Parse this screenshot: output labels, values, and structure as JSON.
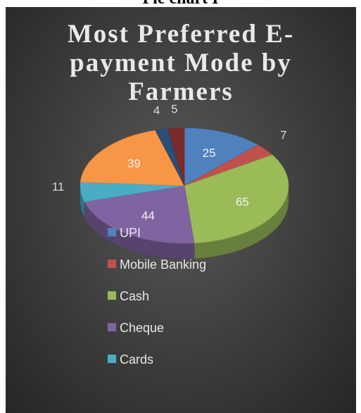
{
  "caption": "Pie chart I",
  "chart_data": {
    "type": "pie",
    "title": "Most Preferred E-payment Mode by Farmers",
    "title_lines": [
      "Most Preferred E-",
      "payment Mode by",
      "Farmers"
    ],
    "three_d": true,
    "legend_position": "bottom-center",
    "slices": [
      {
        "label": "UPI",
        "value": 25,
        "color": "#4f81bd"
      },
      {
        "label": "Mobile Banking",
        "value": 7,
        "color": "#c0504d"
      },
      {
        "label": "Cash",
        "value": 65,
        "color": "#9bbb59"
      },
      {
        "label": "Cheque",
        "value": 44,
        "color": "#8064a2"
      },
      {
        "label": "Cards",
        "value": 11,
        "color": "#4bacc6"
      },
      {
        "label": "",
        "value": 39,
        "color": "#f79646"
      },
      {
        "label": "",
        "value": 4,
        "color": "#2c4d75"
      },
      {
        "label": "",
        "value": 5,
        "color": "#772c2a"
      }
    ],
    "legend": [
      "UPI",
      "Mobile Banking",
      "Cash",
      "Cheque",
      "Cards"
    ]
  }
}
